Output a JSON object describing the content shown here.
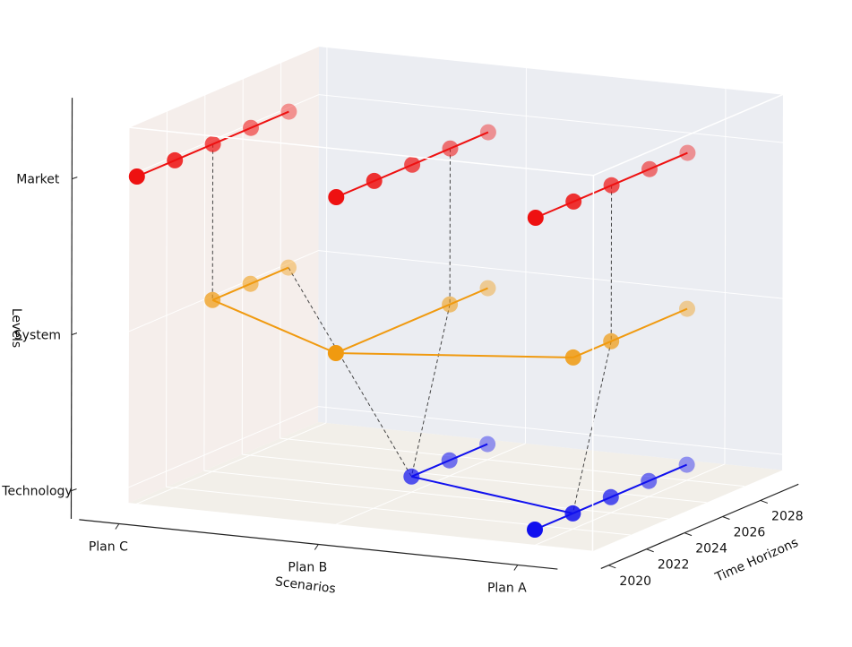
{
  "chart_data": {
    "type": "scatter",
    "subtype": "3d-line-scatter",
    "title": "",
    "xlabel": "Scenarios",
    "ylabel": "Time Horizons",
    "zlabel": "Levels",
    "x_categories": [
      "Plan C",
      "Plan B",
      "Plan A"
    ],
    "z_categories": [
      "Technology",
      "System",
      "Market"
    ],
    "y_ticks": [
      2020,
      2022,
      2024,
      2026,
      2028
    ],
    "ylim": [
      2020,
      2030
    ],
    "grid": true,
    "legend": "none",
    "level_colors": {
      "Market": "#ee1111",
      "System": "#f09a10",
      "Technology": "#1010ee"
    },
    "series": [
      {
        "scenario": "Plan C",
        "level": "Market",
        "years": [
          2020,
          2022,
          2024,
          2026,
          2028
        ]
      },
      {
        "scenario": "Plan C",
        "level": "System",
        "years": [
          2024,
          2026,
          2028
        ]
      },
      {
        "scenario": "Plan B",
        "level": "Market",
        "years": [
          2020,
          2022,
          2024,
          2026,
          2028
        ]
      },
      {
        "scenario": "Plan B",
        "level": "System",
        "years": [
          2020,
          2026,
          2028
        ]
      },
      {
        "scenario": "Plan B",
        "level": "Technology",
        "years": [
          2024,
          2026,
          2028
        ]
      },
      {
        "scenario": "Plan A",
        "level": "Market",
        "years": [
          2020,
          2022,
          2024,
          2026,
          2028
        ]
      },
      {
        "scenario": "Plan A",
        "level": "System",
        "years": [
          2022,
          2024,
          2028
        ]
      },
      {
        "scenario": "Plan A",
        "level": "Technology",
        "years": [
          2020,
          2022,
          2024,
          2026,
          2028
        ]
      }
    ],
    "cross_links": [
      {
        "from": {
          "scenario": "Plan C",
          "level": "System",
          "year": 2024
        },
        "to": {
          "scenario": "Plan B",
          "level": "System",
          "year": 2020
        },
        "style": "solid"
      },
      {
        "from": {
          "scenario": "Plan B",
          "level": "System",
          "year": 2020
        },
        "to": {
          "scenario": "Plan A",
          "level": "System",
          "year": 2022
        },
        "style": "solid"
      },
      {
        "from": {
          "scenario": "Plan B",
          "level": "Technology",
          "year": 2024
        },
        "to": {
          "scenario": "Plan A",
          "level": "Technology",
          "year": 2022
        },
        "style": "solid"
      },
      {
        "from": {
          "scenario": "Plan C",
          "level": "Market",
          "year": 2024
        },
        "to": {
          "scenario": "Plan C",
          "level": "System",
          "year": 2024
        },
        "style": "dashed"
      },
      {
        "from": {
          "scenario": "Plan C",
          "level": "System",
          "year": 2028
        },
        "to": {
          "scenario": "Plan B",
          "level": "Technology",
          "year": 2024
        },
        "style": "dashed"
      },
      {
        "from": {
          "scenario": "Plan B",
          "level": "Market",
          "year": 2026
        },
        "to": {
          "scenario": "Plan B",
          "level": "System",
          "year": 2026
        },
        "style": "dashed"
      },
      {
        "from": {
          "scenario": "Plan B",
          "level": "System",
          "year": 2026
        },
        "to": {
          "scenario": "Plan B",
          "level": "Technology",
          "year": 2024
        },
        "style": "dashed"
      },
      {
        "from": {
          "scenario": "Plan A",
          "level": "Market",
          "year": 2024
        },
        "to": {
          "scenario": "Plan A",
          "level": "System",
          "year": 2024
        },
        "style": "dashed"
      },
      {
        "from": {
          "scenario": "Plan A",
          "level": "System",
          "year": 2024
        },
        "to": {
          "scenario": "Plan A",
          "level": "Technology",
          "year": 2022
        },
        "style": "dashed"
      }
    ]
  }
}
